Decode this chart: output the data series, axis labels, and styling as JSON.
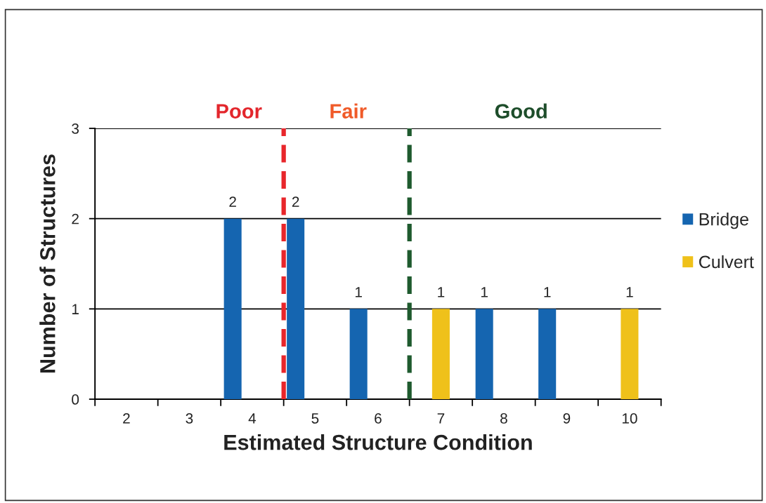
{
  "chart_data": {
    "type": "bar",
    "xlabel": "Estimated Structure Condition",
    "ylabel": "Number of Structures",
    "series": [
      {
        "name": "Bridge",
        "color": "#1565b0",
        "x": [
          4,
          5,
          6,
          8,
          9
        ],
        "values": [
          2,
          2,
          1,
          1,
          1
        ]
      },
      {
        "name": "Culvert",
        "color": "#efc11a",
        "x": [
          7,
          10
        ],
        "values": [
          1,
          1
        ]
      }
    ],
    "xlim": [
      1.5,
      10.5
    ],
    "xticks": [
      2,
      3,
      4,
      5,
      6,
      7,
      8,
      9,
      10
    ],
    "ylim": [
      0,
      3
    ],
    "yticks": [
      0,
      1,
      2,
      3
    ],
    "grid": "y",
    "legend": "right",
    "data_labels": true,
    "ref_lines": [
      {
        "axis": "x",
        "value": 4.5,
        "color": "#e8262b",
        "line_style": "dashed"
      },
      {
        "axis": "x",
        "value": 6.5,
        "color": "#1e5a2e",
        "line_style": "dashed"
      }
    ],
    "annotations": [
      "Poor",
      "Fair",
      "Good"
    ]
  }
}
